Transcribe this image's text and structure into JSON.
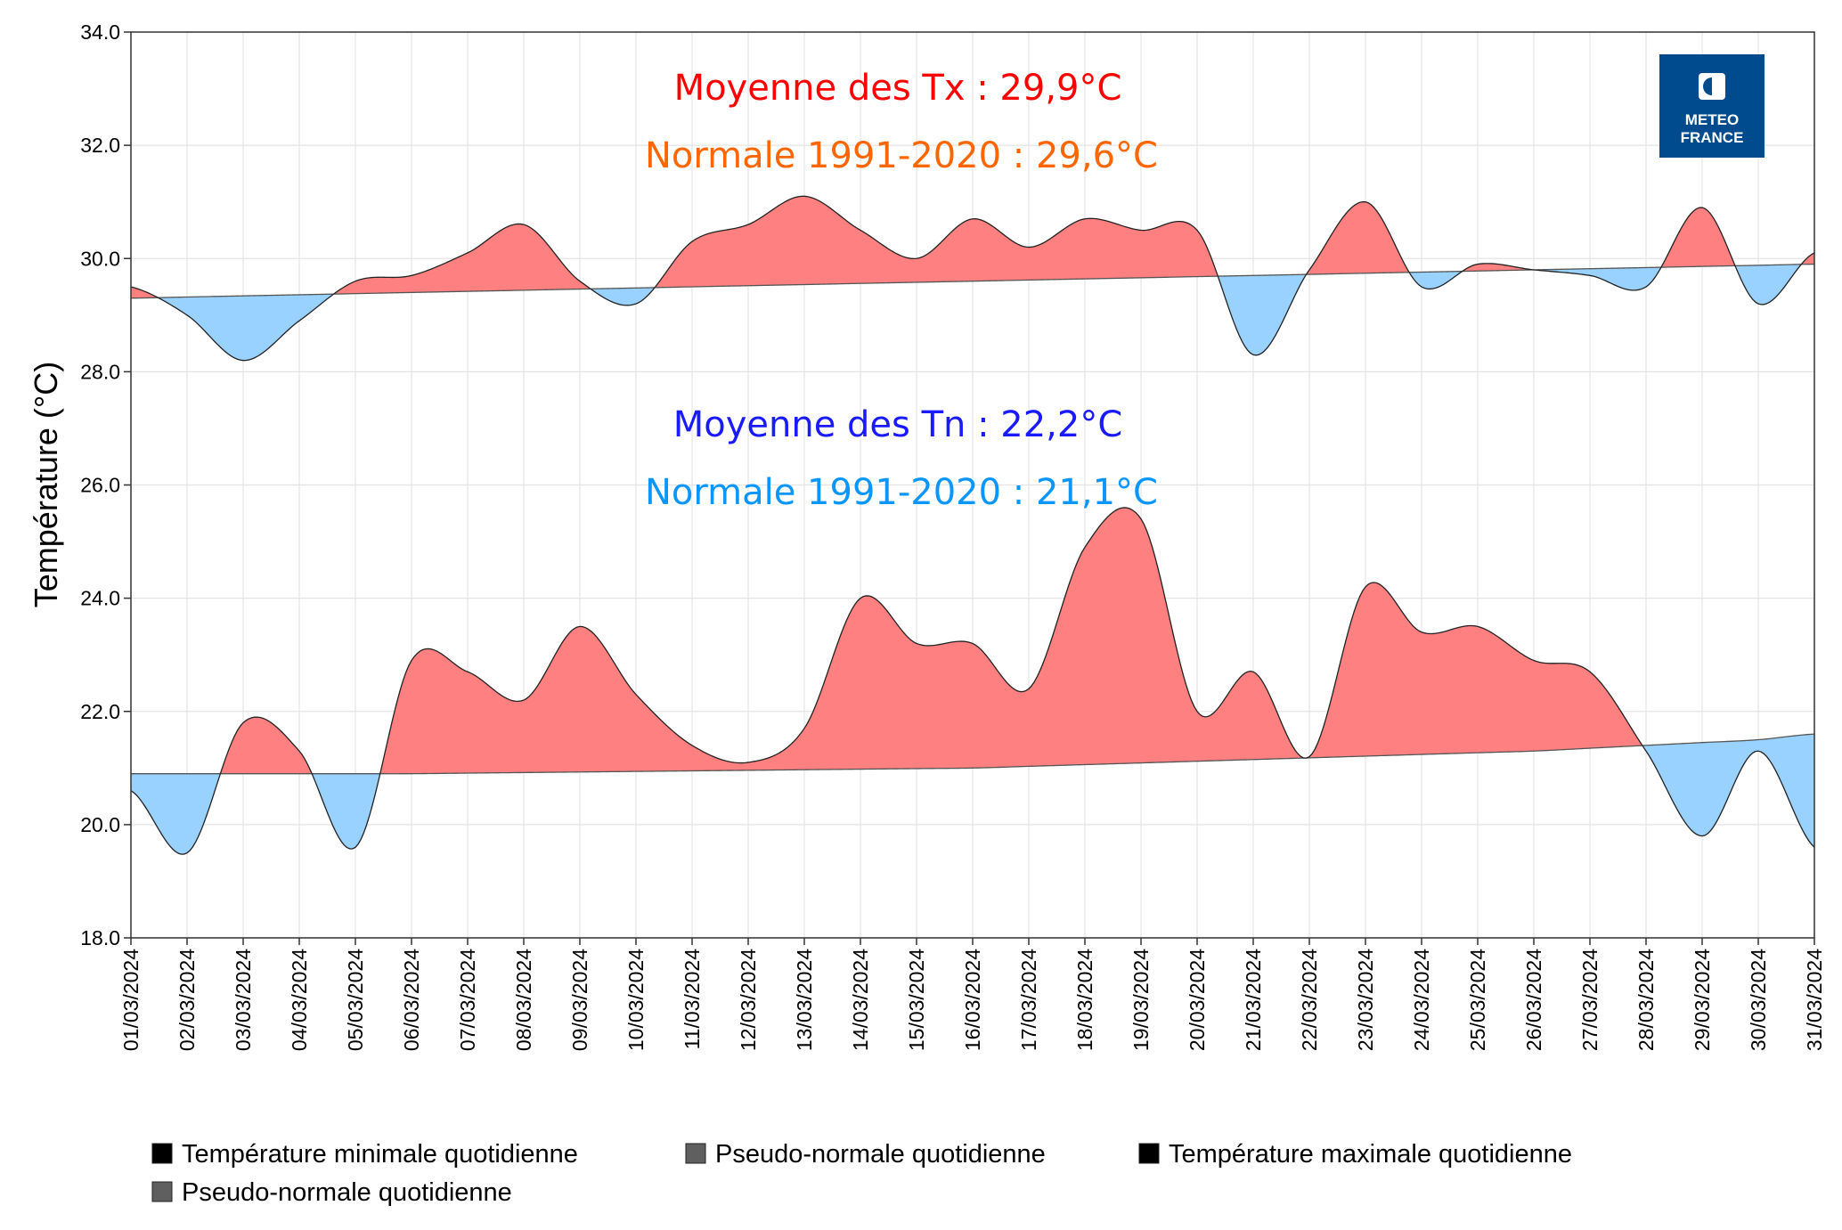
{
  "chart_data": {
    "type": "area",
    "ylabel": "Température (°C)",
    "ylim": [
      18.0,
      34.0
    ],
    "yticks": [
      "18.0",
      "20.0",
      "22.0",
      "24.0",
      "26.0",
      "28.0",
      "30.0",
      "32.0",
      "34.0"
    ],
    "grid": true,
    "x": [
      "01/03/2024",
      "02/03/2024",
      "03/03/2024",
      "04/03/2024",
      "05/03/2024",
      "06/03/2024",
      "07/03/2024",
      "08/03/2024",
      "09/03/2024",
      "10/03/2024",
      "11/03/2024",
      "12/03/2024",
      "13/03/2024",
      "14/03/2024",
      "15/03/2024",
      "16/03/2024",
      "17/03/2024",
      "18/03/2024",
      "19/03/2024",
      "20/03/2024",
      "21/03/2024",
      "22/03/2024",
      "23/03/2024",
      "24/03/2024",
      "25/03/2024",
      "26/03/2024",
      "27/03/2024",
      "28/03/2024",
      "29/03/2024",
      "30/03/2024",
      "31/03/2024"
    ],
    "series": [
      {
        "name": "Température maximale quotidienne",
        "values": [
          29.5,
          29.0,
          28.2,
          28.9,
          29.6,
          29.7,
          30.1,
          30.6,
          29.6,
          29.2,
          30.3,
          30.6,
          31.1,
          30.5,
          30.0,
          30.7,
          30.2,
          30.7,
          30.5,
          30.5,
          28.3,
          29.8,
          31.0,
          29.5,
          29.9,
          29.8,
          29.7,
          29.5,
          30.9,
          29.2,
          30.1
        ]
      },
      {
        "name": "Pseudo-normale quotidienne",
        "values": [
          29.3,
          29.32,
          29.34,
          29.36,
          29.38,
          29.4,
          29.42,
          29.44,
          29.46,
          29.48,
          29.5,
          29.52,
          29.54,
          29.56,
          29.58,
          29.6,
          29.62,
          29.64,
          29.66,
          29.68,
          29.7,
          29.72,
          29.74,
          29.76,
          29.78,
          29.8,
          29.82,
          29.84,
          29.86,
          29.88,
          29.9
        ]
      },
      {
        "name": "Température minimale quotidienne",
        "values": [
          20.6,
          19.5,
          21.8,
          21.3,
          19.6,
          22.9,
          22.7,
          22.2,
          23.5,
          22.3,
          21.4,
          21.1,
          21.7,
          24.0,
          23.2,
          23.2,
          22.4,
          24.9,
          25.4,
          22.0,
          22.7,
          21.2,
          24.2,
          23.4,
          23.5,
          22.9,
          22.7,
          21.3,
          19.8,
          21.3,
          19.6
        ]
      },
      {
        "name": "Pseudo-normale quotidienne",
        "values": [
          20.9,
          20.9,
          20.9,
          20.9,
          20.9,
          20.9,
          20.91,
          20.92,
          20.93,
          20.94,
          20.95,
          20.96,
          20.97,
          20.98,
          20.99,
          21.0,
          21.03,
          21.06,
          21.09,
          21.12,
          21.15,
          21.18,
          21.21,
          21.24,
          21.27,
          21.3,
          21.35,
          21.4,
          21.45,
          21.5,
          21.6
        ]
      }
    ],
    "annotations": {
      "tx_mean": "Moyenne des Tx : 29,9°C",
      "tx_normal": "Normale 1991-2020 : 29,6°C",
      "tn_mean": "Moyenne des Tn : 22,2°C",
      "tn_normal": "Normale 1991-2020 : 21,1°C"
    },
    "legend": {
      "placement": "bottom",
      "items": [
        {
          "label": "Température minimale quotidienne",
          "color": "#000000"
        },
        {
          "label": "Pseudo-normale quotidienne",
          "color": "#5f5f5f"
        },
        {
          "label": "Température maximale quotidienne",
          "color": "#000000"
        },
        {
          "label": "Pseudo-normale quotidienne",
          "color": "#5f5f5f"
        }
      ]
    },
    "colors": {
      "above": "#FF8080",
      "below": "#99D1FF",
      "tx_mean": "#FF0000",
      "tx_normal": "#FF6600",
      "tn_mean": "#1A1AFF",
      "tn_normal": "#0A96FF",
      "logo": "#004B8D"
    }
  },
  "logo": {
    "line1": "METEO",
    "line2": "FRANCE"
  }
}
